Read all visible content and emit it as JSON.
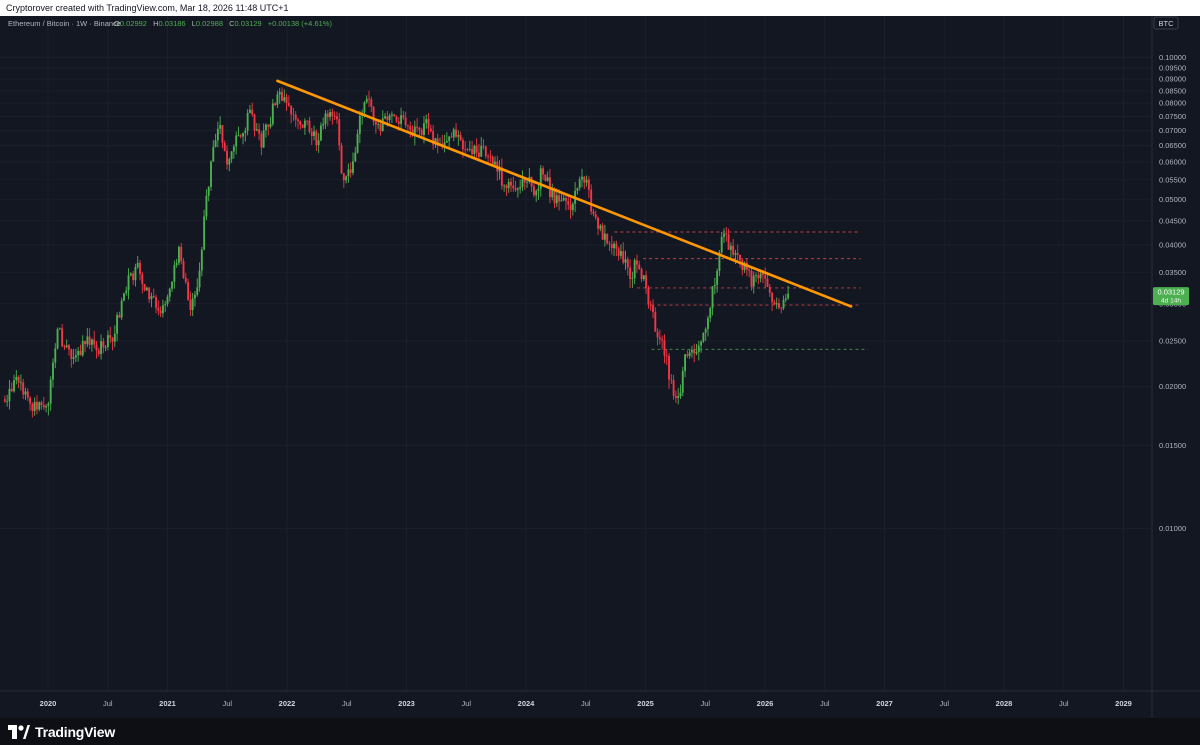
{
  "header": {
    "credit": "Cryptorover created with TradingView.com, Mar 18, 2026 11:48 UTC+1"
  },
  "legend": {
    "symbol": "Ethereum / Bitcoin · 1W · Binance",
    "o_label": "O",
    "o_value": "0.02992",
    "h_label": "H",
    "h_value": "0.03186",
    "l_label": "L",
    "l_value": "0.02988",
    "c_label": "C",
    "c_value": "0.03129",
    "change": "+0.00138 (+4.61%)"
  },
  "price_scale": {
    "currency_badge": "BTC",
    "last_price": "0.03129",
    "countdown": "4d 14h"
  },
  "branding": {
    "logo_text": "TradingView"
  },
  "colors": {
    "background": "#131722",
    "up": "#4caf50",
    "down": "#f23645",
    "trendline": "#ff9800",
    "level_red": "#e0474c",
    "level_green": "#4caf50",
    "text": "#b2b5be"
  },
  "chart_data": {
    "type": "candlestick",
    "interval": "1W",
    "title": "Ethereum / Bitcoin · 1W · Binance",
    "y_scale": "log",
    "ylim": [
      0.0093,
      0.135
    ],
    "y_ticks": [
      "0.10000",
      "0.09500",
      "0.09000",
      "0.08500",
      "0.08000",
      "0.07500",
      "0.07000",
      "0.06500",
      "0.06000",
      "0.05500",
      "0.05000",
      "0.04500",
      "0.04000",
      "0.03500",
      "0.03000",
      "0.02500",
      "0.02000",
      "0.01500",
      "0.01000"
    ],
    "x_ticks": [
      {
        "t": 2020.0,
        "label": "2020",
        "major": true
      },
      {
        "t": 2020.5,
        "label": "Jul",
        "major": false
      },
      {
        "t": 2021.0,
        "label": "2021",
        "major": true
      },
      {
        "t": 2021.5,
        "label": "Jul",
        "major": false
      },
      {
        "t": 2022.0,
        "label": "2022",
        "major": true
      },
      {
        "t": 2022.5,
        "label": "Jul",
        "major": false
      },
      {
        "t": 2023.0,
        "label": "2023",
        "major": true
      },
      {
        "t": 2023.5,
        "label": "Jul",
        "major": false
      },
      {
        "t": 2024.0,
        "label": "2024",
        "major": true
      },
      {
        "t": 2024.5,
        "label": "Jul",
        "major": false
      },
      {
        "t": 2025.0,
        "label": "2025",
        "major": true
      },
      {
        "t": 2025.5,
        "label": "Jul",
        "major": false
      },
      {
        "t": 2026.0,
        "label": "2026",
        "major": true
      },
      {
        "t": 2026.5,
        "label": "Jul",
        "major": false
      },
      {
        "t": 2027.0,
        "label": "2027",
        "major": true
      },
      {
        "t": 2027.5,
        "label": "Jul",
        "major": false
      },
      {
        "t": 2028.0,
        "label": "2028",
        "major": true
      },
      {
        "t": 2028.5,
        "label": "Jul",
        "major": false
      },
      {
        "t": 2029.0,
        "label": "2029",
        "major": true
      }
    ],
    "price_path": [
      [
        2019.62,
        0.0188
      ],
      [
        2019.75,
        0.0205
      ],
      [
        2019.9,
        0.0178
      ],
      [
        2020.0,
        0.0182
      ],
      [
        2020.08,
        0.0265
      ],
      [
        2020.15,
        0.0238
      ],
      [
        2020.22,
        0.0222
      ],
      [
        2020.3,
        0.0252
      ],
      [
        2020.42,
        0.0242
      ],
      [
        2020.55,
        0.0258
      ],
      [
        2020.67,
        0.0338
      ],
      [
        2020.75,
        0.0355
      ],
      [
        2020.85,
        0.0305
      ],
      [
        2020.95,
        0.0295
      ],
      [
        2021.03,
        0.0325
      ],
      [
        2021.1,
        0.0398
      ],
      [
        2021.18,
        0.0295
      ],
      [
        2021.25,
        0.0318
      ],
      [
        2021.32,
        0.0495
      ],
      [
        2021.38,
        0.0618
      ],
      [
        2021.43,
        0.0715
      ],
      [
        2021.5,
        0.0605
      ],
      [
        2021.55,
        0.0652
      ],
      [
        2021.62,
        0.0695
      ],
      [
        2021.7,
        0.0765
      ],
      [
        2021.78,
        0.0655
      ],
      [
        2021.85,
        0.0725
      ],
      [
        2021.92,
        0.0842
      ],
      [
        2022.0,
        0.0805
      ],
      [
        2022.05,
        0.0742
      ],
      [
        2022.1,
        0.0712
      ],
      [
        2022.17,
        0.0728
      ],
      [
        2022.25,
        0.0672
      ],
      [
        2022.33,
        0.0758
      ],
      [
        2022.42,
        0.0735
      ],
      [
        2022.46,
        0.0575
      ],
      [
        2022.5,
        0.0545
      ],
      [
        2022.58,
        0.0635
      ],
      [
        2022.62,
        0.0762
      ],
      [
        2022.68,
        0.0815
      ],
      [
        2022.75,
        0.0705
      ],
      [
        2022.83,
        0.0745
      ],
      [
        2022.92,
        0.0735
      ],
      [
        2023.0,
        0.0725
      ],
      [
        2023.08,
        0.0688
      ],
      [
        2023.17,
        0.0718
      ],
      [
        2023.25,
        0.0648
      ],
      [
        2023.33,
        0.0672
      ],
      [
        2023.42,
        0.0695
      ],
      [
        2023.5,
        0.0642
      ],
      [
        2023.58,
        0.0628
      ],
      [
        2023.67,
        0.0635
      ],
      [
        2023.75,
        0.0598
      ],
      [
        2023.8,
        0.0545
      ],
      [
        2023.88,
        0.0535
      ],
      [
        2023.96,
        0.0545
      ],
      [
        2024.0,
        0.0558
      ],
      [
        2024.08,
        0.0515
      ],
      [
        2024.13,
        0.0575
      ],
      [
        2024.17,
        0.0552
      ],
      [
        2024.22,
        0.0505
      ],
      [
        2024.3,
        0.0498
      ],
      [
        2024.37,
        0.0468
      ],
      [
        2024.42,
        0.0548
      ],
      [
        2024.5,
        0.0545
      ],
      [
        2024.55,
        0.0482
      ],
      [
        2024.6,
        0.0435
      ],
      [
        2024.67,
        0.0408
      ],
      [
        2024.75,
        0.0385
      ],
      [
        2024.83,
        0.0372
      ],
      [
        2024.88,
        0.0345
      ],
      [
        2024.92,
        0.0365
      ],
      [
        2025.0,
        0.0335
      ],
      [
        2025.04,
        0.0292
      ],
      [
        2025.1,
        0.0258
      ],
      [
        2025.17,
        0.0232
      ],
      [
        2025.23,
        0.0192
      ],
      [
        2025.28,
        0.0188
      ],
      [
        2025.33,
        0.0232
      ],
      [
        2025.42,
        0.0238
      ],
      [
        2025.48,
        0.0252
      ],
      [
        2025.5,
        0.0255
      ],
      [
        2025.55,
        0.0315
      ],
      [
        2025.6,
        0.0352
      ],
      [
        2025.65,
        0.0422
      ],
      [
        2025.7,
        0.0398
      ],
      [
        2025.75,
        0.0382
      ],
      [
        2025.83,
        0.0358
      ],
      [
        2025.9,
        0.0332
      ],
      [
        2025.95,
        0.0348
      ],
      [
        2026.0,
        0.0338
      ],
      [
        2026.04,
        0.0322
      ],
      [
        2026.08,
        0.0295
      ],
      [
        2026.13,
        0.0296
      ],
      [
        2026.17,
        0.0302
      ],
      [
        2026.21,
        0.03129
      ]
    ],
    "trendline": {
      "start": [
        2021.92,
        0.0892
      ],
      "end": [
        2026.72,
        0.0296
      ]
    },
    "levels": [
      {
        "price": 0.0426,
        "from": 2024.74,
        "to": 2026.8,
        "kind": "resistance"
      },
      {
        "price": 0.0374,
        "from": 2024.98,
        "to": 2026.8,
        "kind": "resistance"
      },
      {
        "price": 0.0324,
        "from": 2024.93,
        "to": 2026.8,
        "kind": "resistance"
      },
      {
        "price": 0.0298,
        "from": 2025.05,
        "to": 2026.8,
        "kind": "resistance"
      },
      {
        "price": 0.024,
        "from": 2025.05,
        "to": 2026.86,
        "kind": "support"
      }
    ]
  }
}
